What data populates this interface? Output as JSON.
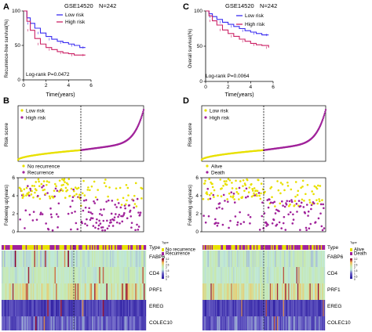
{
  "colors": {
    "low": "#3a2cf0",
    "high": "#cc2266",
    "low_dot": "#e8e000",
    "high_dot": "#a0229a",
    "heat_low": "#2a1aa0",
    "heat_mid": "#bfe8d8",
    "heat_high": "#f4c060",
    "heat_max": "#8a0030"
  },
  "panels": {
    "A": {
      "letter": "A",
      "dataset": "GSE14520",
      "n_label": "N=242",
      "ylabel": "Recurrence-free survival(%)",
      "xlabel": "Time(years)",
      "logrank": "Log-rank P=0.0472",
      "legend": [
        "Low risk",
        "High risk"
      ]
    },
    "C": {
      "letter": "C",
      "dataset": "GSE14520",
      "n_label": "N=242",
      "ylabel": "Overall survival(%)",
      "xlabel": "Time(years)",
      "logrank": "Log-rank P=0.0064",
      "legend": [
        "Low risk",
        "High risk"
      ]
    },
    "B": {
      "letter": "B",
      "risk_ylabel": "Risk score",
      "risk_legend": [
        "Low risk",
        "High risk"
      ],
      "fu_ylabel": "Following up(years)",
      "fu_legend": [
        "No recurrence",
        "Recurrence"
      ]
    },
    "D": {
      "letter": "D",
      "risk_ylabel": "Risk score",
      "risk_legend": [
        "Low risk",
        "High risk"
      ],
      "fu_ylabel": "Following up(years)",
      "fu_legend": [
        "Alive",
        "Death"
      ]
    }
  },
  "heatmap": {
    "row_labels": [
      "Type",
      "FABP6",
      "CD4",
      "PRF1",
      "EREG",
      "COLEC10"
    ],
    "scale_labels": [
      "3.2",
      "3",
      "2.5",
      "2",
      "1.5",
      "1",
      "0.5",
      "0"
    ],
    "left_legend_title": "Type",
    "left_legend": [
      "No recurrence",
      "Recurrence"
    ],
    "right_legend_title": "Type",
    "right_legend": [
      "Alive",
      "Death"
    ]
  },
  "chart_data": [
    {
      "type": "line",
      "panel": "A",
      "title": "GSE14520",
      "xlabel": "Time(years)",
      "ylabel": "Recurrence-free survival(%)",
      "xlim": [
        0,
        6
      ],
      "ylim": [
        0,
        100
      ],
      "xticks": [
        0,
        2,
        4,
        6
      ],
      "yticks": [
        0,
        50,
        100
      ],
      "series": [
        {
          "name": "Low risk",
          "x": [
            0,
            0.3,
            0.6,
            1.0,
            1.5,
            2.0,
            2.5,
            3.0,
            3.5,
            4.0,
            4.5,
            5.0,
            5.5
          ],
          "y": [
            100,
            90,
            82,
            75,
            68,
            63,
            59,
            56,
            54,
            52,
            50,
            47,
            47
          ]
        },
        {
          "name": "High risk",
          "x": [
            0,
            0.3,
            0.6,
            1.0,
            1.5,
            2.0,
            2.5,
            3.0,
            3.5,
            4.0,
            4.5,
            5.0,
            5.5
          ],
          "y": [
            100,
            85,
            72,
            60,
            52,
            47,
            44,
            41,
            39,
            38,
            36,
            36,
            36
          ]
        }
      ],
      "annotation": "Log-rank P=0.0472"
    },
    {
      "type": "line",
      "panel": "C",
      "title": "GSE14520",
      "xlabel": "Time(years)",
      "ylabel": "Overall survival(%)",
      "xlim": [
        0,
        6
      ],
      "ylim": [
        0,
        100
      ],
      "xticks": [
        0,
        2,
        4,
        6
      ],
      "yticks": [
        0,
        50,
        100
      ],
      "series": [
        {
          "name": "Low risk",
          "x": [
            0,
            0.3,
            0.6,
            1.0,
            1.5,
            2.0,
            2.5,
            3.0,
            3.5,
            4.0,
            4.5,
            5.0,
            5.6
          ],
          "y": [
            100,
            96,
            92,
            88,
            84,
            81,
            78,
            75,
            72,
            70,
            68,
            66,
            66
          ]
        },
        {
          "name": "High risk",
          "x": [
            0,
            0.3,
            0.6,
            1.0,
            1.5,
            2.0,
            2.5,
            3.0,
            3.5,
            4.0,
            4.5,
            5.0,
            5.6
          ],
          "y": [
            100,
            93,
            86,
            80,
            73,
            68,
            64,
            60,
            57,
            54,
            52,
            51,
            48
          ]
        }
      ],
      "annotation": "Log-rank P=0.0064"
    },
    {
      "type": "scatter",
      "panel": "B-risk",
      "ylabel": "Risk score",
      "ylim": [
        0,
        8
      ],
      "yticks": [
        0,
        2,
        4,
        6,
        8
      ],
      "n_patients": 242,
      "cutoff_index": 121,
      "series": [
        {
          "name": "Low risk",
          "range": [
            1,
            121
          ],
          "score_start": 0.2,
          "score_end": 1.6
        },
        {
          "name": "High risk",
          "range": [
            122,
            242
          ],
          "score_start": 1.6,
          "score_end": 7.4
        }
      ]
    },
    {
      "type": "scatter",
      "panel": "B-followup",
      "ylabel": "Following up(years)",
      "ylim": [
        0,
        6
      ],
      "yticks": [
        0,
        2,
        4,
        6
      ],
      "series": [
        {
          "name": "No recurrence"
        },
        {
          "name": "Recurrence"
        }
      ]
    },
    {
      "type": "scatter",
      "panel": "D-risk",
      "ylabel": "Risk score",
      "ylim": [
        0,
        8
      ],
      "yticks": [
        0,
        2,
        4,
        6,
        8
      ],
      "n_patients": 242,
      "cutoff_index": 121,
      "series": [
        {
          "name": "Low risk",
          "range": [
            1,
            121
          ],
          "score_start": 0.2,
          "score_end": 1.6
        },
        {
          "name": "High risk",
          "range": [
            122,
            242
          ],
          "score_start": 1.6,
          "score_end": 7.4
        }
      ]
    },
    {
      "type": "scatter",
      "panel": "D-followup",
      "ylabel": "Following up(years)",
      "ylim": [
        0,
        6
      ],
      "yticks": [
        0,
        2,
        4,
        6
      ],
      "series": [
        {
          "name": "Alive"
        },
        {
          "name": "Death"
        }
      ]
    },
    {
      "type": "heatmap",
      "panel": "B-heatmap",
      "rows": [
        "FABP6",
        "CD4",
        "PRF1",
        "EREG",
        "COLEC10"
      ],
      "scale": [
        0,
        3.2
      ]
    },
    {
      "type": "heatmap",
      "panel": "D-heatmap",
      "rows": [
        "FABP6",
        "CD4",
        "PRF1",
        "EREG",
        "COLEC10"
      ],
      "scale": [
        0,
        3.2
      ]
    }
  ]
}
